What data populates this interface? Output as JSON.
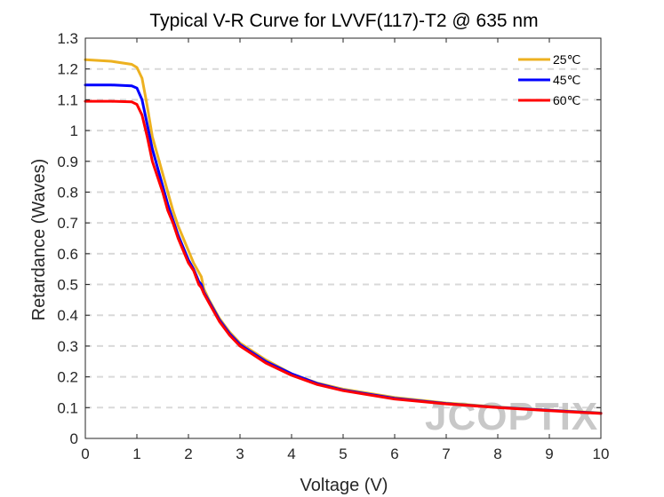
{
  "chart_data": {
    "type": "line",
    "title": "Typical V-R Curve for LVVF(117)-T2 @ 635 nm",
    "xlabel": "Voltage (V)",
    "ylabel": "Retardance (Waves)",
    "xlim": [
      0,
      10
    ],
    "ylim": [
      0,
      1.3
    ],
    "xticks": [
      "0",
      "1",
      "2",
      "3",
      "4",
      "5",
      "6",
      "7",
      "8",
      "9",
      "10"
    ],
    "yticks": [
      "0",
      "0.1",
      "0.2",
      "0.3",
      "0.4",
      "0.5",
      "0.6",
      "0.7",
      "0.8",
      "0.9",
      "1",
      "1.1",
      "1.2",
      "1.3"
    ],
    "grid": "horizontal dashed",
    "legend_position": "top-right",
    "watermark": "JCOPTIX",
    "series": [
      {
        "name": "25℃",
        "color": "#EDB120",
        "x": [
          0,
          0.5,
          0.9,
          1.0,
          1.1,
          1.2,
          1.3,
          1.4,
          1.5,
          1.6,
          1.7,
          1.8,
          1.9,
          2.0,
          2.1,
          2.2,
          2.25,
          2.3,
          2.4,
          2.5,
          2.6,
          2.8,
          3.0,
          3.5,
          4.0,
          4.5,
          5.0,
          6.0,
          7.0,
          8.0,
          9.0,
          10.0
        ],
        "y": [
          1.23,
          1.225,
          1.215,
          1.205,
          1.17,
          1.08,
          0.98,
          0.92,
          0.86,
          0.8,
          0.74,
          0.69,
          0.65,
          0.61,
          0.57,
          0.54,
          0.525,
          0.485,
          0.45,
          0.42,
          0.39,
          0.345,
          0.31,
          0.255,
          0.21,
          0.18,
          0.16,
          0.133,
          0.115,
          0.102,
          0.092,
          0.083
        ]
      },
      {
        "name": "45℃",
        "color": "#0000FF",
        "x": [
          0,
          0.5,
          0.9,
          1.0,
          1.1,
          1.2,
          1.3,
          1.4,
          1.5,
          1.6,
          1.7,
          1.8,
          1.9,
          2.0,
          2.1,
          2.2,
          2.25,
          2.3,
          2.4,
          2.5,
          2.6,
          2.8,
          3.0,
          3.5,
          4.0,
          4.5,
          5.0,
          6.0,
          7.0,
          8.0,
          9.0,
          10.0
        ],
        "y": [
          1.148,
          1.148,
          1.145,
          1.138,
          1.1,
          1.02,
          0.94,
          0.88,
          0.82,
          0.76,
          0.71,
          0.66,
          0.62,
          0.58,
          0.55,
          0.51,
          0.5,
          0.475,
          0.445,
          0.415,
          0.385,
          0.34,
          0.305,
          0.25,
          0.21,
          0.178,
          0.157,
          0.13,
          0.113,
          0.101,
          0.091,
          0.082
        ]
      },
      {
        "name": "60℃",
        "color": "#FF0000",
        "x": [
          0,
          0.5,
          0.9,
          1.0,
          1.1,
          1.2,
          1.3,
          1.4,
          1.5,
          1.6,
          1.7,
          1.8,
          1.9,
          2.0,
          2.1,
          2.2,
          2.25,
          2.3,
          2.4,
          2.5,
          2.6,
          2.8,
          3.0,
          3.5,
          4.0,
          4.5,
          5.0,
          6.0,
          7.0,
          8.0,
          9.0,
          10.0
        ],
        "y": [
          1.095,
          1.095,
          1.093,
          1.085,
          1.05,
          0.98,
          0.9,
          0.85,
          0.8,
          0.74,
          0.7,
          0.65,
          0.61,
          0.57,
          0.545,
          0.5,
          0.49,
          0.47,
          0.44,
          0.41,
          0.38,
          0.335,
          0.3,
          0.245,
          0.205,
          0.175,
          0.155,
          0.128,
          0.112,
          0.1,
          0.09,
          0.081
        ]
      }
    ]
  }
}
